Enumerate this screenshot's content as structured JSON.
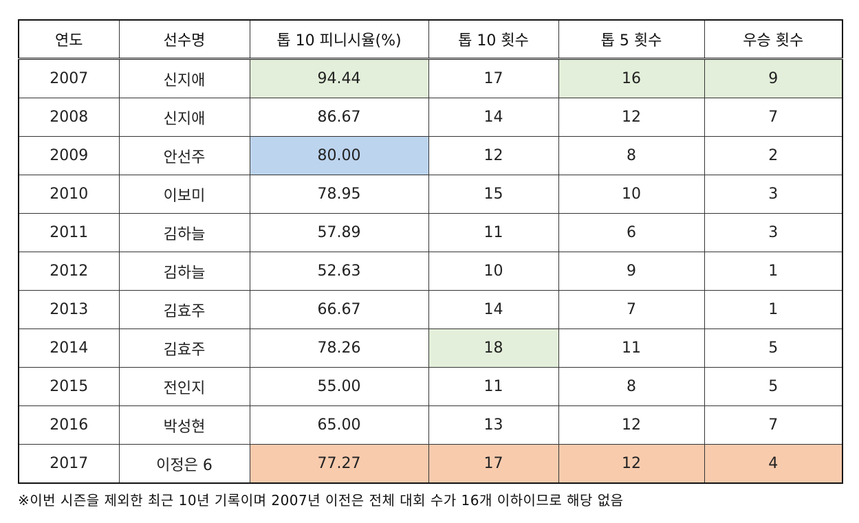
{
  "headers": [
    "연도",
    "선수명",
    "톱 10 피니시율(%)",
    "톱 10 횟수",
    "톱 5 횟수",
    "우승 횟수"
  ],
  "colors": {
    "green": "#e3efda",
    "blue": "#bdd4ee",
    "orange": "#f8cbad"
  },
  "rows": [
    {
      "cells": [
        "2007",
        "신지애",
        "94.44",
        "17",
        "16",
        "9"
      ],
      "highlight": [
        "",
        "",
        "green",
        "",
        "green",
        "green"
      ]
    },
    {
      "cells": [
        "2008",
        "신지애",
        "86.67",
        "14",
        "12",
        "7"
      ],
      "highlight": [
        "",
        "",
        "",
        "",
        "",
        ""
      ]
    },
    {
      "cells": [
        "2009",
        "안선주",
        "80.00",
        "12",
        "8",
        "2"
      ],
      "highlight": [
        "",
        "",
        "blue",
        "",
        "",
        ""
      ]
    },
    {
      "cells": [
        "2010",
        "이보미",
        "78.95",
        "15",
        "10",
        "3"
      ],
      "highlight": [
        "",
        "",
        "",
        "",
        "",
        ""
      ]
    },
    {
      "cells": [
        "2011",
        "김하늘",
        "57.89",
        "11",
        "6",
        "3"
      ],
      "highlight": [
        "",
        "",
        "",
        "",
        "",
        ""
      ]
    },
    {
      "cells": [
        "2012",
        "김하늘",
        "52.63",
        "10",
        "9",
        "1"
      ],
      "highlight": [
        "",
        "",
        "",
        "",
        "",
        ""
      ]
    },
    {
      "cells": [
        "2013",
        "김효주",
        "66.67",
        "14",
        "7",
        "1"
      ],
      "highlight": [
        "",
        "",
        "",
        "",
        "",
        ""
      ]
    },
    {
      "cells": [
        "2014",
        "김효주",
        "78.26",
        "18",
        "11",
        "5"
      ],
      "highlight": [
        "",
        "",
        "",
        "green",
        "",
        ""
      ]
    },
    {
      "cells": [
        "2015",
        "전인지",
        "55.00",
        "11",
        "8",
        "5"
      ],
      "highlight": [
        "",
        "",
        "",
        "",
        "",
        ""
      ]
    },
    {
      "cells": [
        "2016",
        "박성현",
        "65.00",
        "13",
        "12",
        "7"
      ],
      "highlight": [
        "",
        "",
        "",
        "",
        "",
        ""
      ]
    },
    {
      "cells": [
        "2017",
        "이정은 6",
        "77.27",
        "17",
        "12",
        "4"
      ],
      "highlight": [
        "",
        "",
        "orange",
        "orange",
        "orange",
        "orange"
      ]
    }
  ],
  "note": "※이번 시즌을 제외한 최근 10년 기록이며 2007년 이전은 전체 대회 수가 16개 이하이므로 해당 없음"
}
